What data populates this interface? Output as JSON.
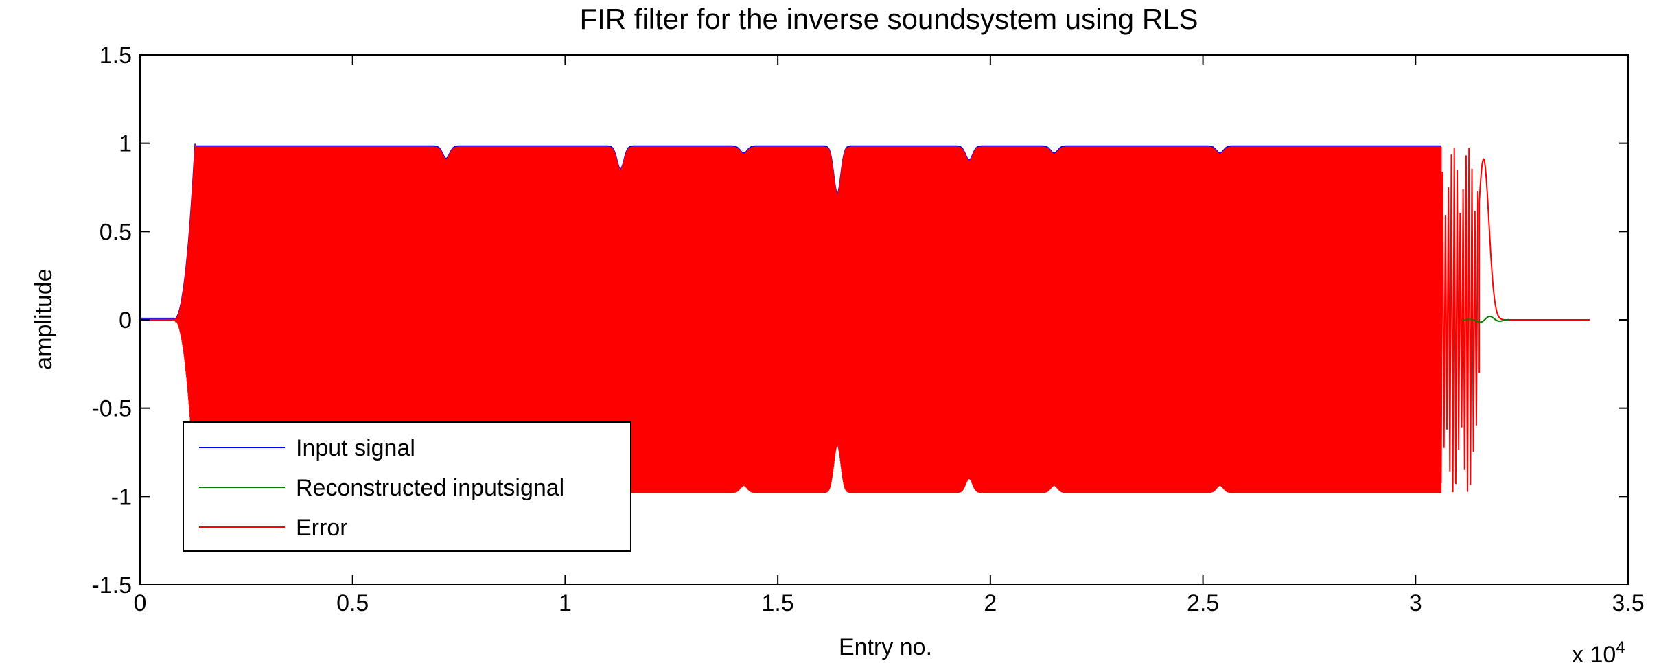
{
  "chart_data": {
    "type": "line",
    "title": "FIR filter for the inverse soundsystem using RLS",
    "xlabel": "Entry no.",
    "ylabel": "amplitude",
    "x_multiplier_label": "x 10",
    "x_multiplier_exponent": "4",
    "xlim": [
      0,
      3.5
    ],
    "ylim": [
      -1.5,
      1.5
    ],
    "x_scale_factor": 10000,
    "x_ticks": [
      0,
      0.5,
      1,
      1.5,
      2,
      2.5,
      3,
      3.5
    ],
    "x_tick_labels": [
      "0",
      "0.5",
      "1",
      "1.5",
      "2",
      "2.5",
      "3",
      "3.5"
    ],
    "y_ticks": [
      -1.5,
      -1,
      -0.5,
      0,
      0.5,
      1,
      1.5
    ],
    "y_tick_labels": [
      "-1.5",
      "-1",
      "-0.5",
      "0",
      "0.5",
      "1",
      "1.5"
    ],
    "grid": false,
    "legend_position": "bottom-left",
    "signal": {
      "x_end": 3.41,
      "onset_start": 0.08,
      "full_amplitude_start": 0.13,
      "steady_amplitude": 0.98,
      "first_peak": 1.01,
      "dense_end": 3.06,
      "sparse_end": 3.15,
      "tail_peak_x": 3.16,
      "tail_peak_y": 0.91,
      "tail_end": 3.22,
      "dips": [
        {
          "x": 0.72,
          "depth": 0.07
        },
        {
          "x": 1.13,
          "depth": 0.13
        },
        {
          "x": 1.42,
          "depth": 0.04
        },
        {
          "x": 1.64,
          "depth": 0.27
        },
        {
          "x": 1.95,
          "depth": 0.08
        },
        {
          "x": 2.15,
          "depth": 0.04
        },
        {
          "x": 2.54,
          "depth": 0.04
        }
      ]
    },
    "series": [
      {
        "name": "Input signal",
        "color": "#0000ff"
      },
      {
        "name": "Reconstructed inputsignal",
        "color": "#008000"
      },
      {
        "name": "Error",
        "color": "#ff0000"
      }
    ]
  }
}
